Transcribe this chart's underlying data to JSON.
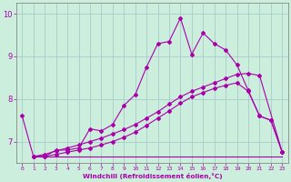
{
  "xlabel": "Windchill (Refroidissement éolien,°C)",
  "bg_color": "#cceedd",
  "grid_color": "#aacccc",
  "line_color": "#aa00aa",
  "xlim": [
    -0.5,
    23.5
  ],
  "ylim": [
    6.5,
    10.25
  ],
  "yticks": [
    7,
    8,
    9,
    10
  ],
  "xticks": [
    0,
    1,
    2,
    3,
    4,
    5,
    6,
    7,
    8,
    9,
    10,
    11,
    12,
    13,
    14,
    15,
    16,
    17,
    18,
    19,
    20,
    21,
    22,
    23
  ],
  "line1_x": [
    0,
    1,
    2,
    3,
    4,
    5,
    6,
    7,
    8,
    9,
    10,
    11,
    12,
    13,
    14,
    15,
    16,
    17,
    18,
    19,
    20,
    21,
    22,
    23
  ],
  "line1_y": [
    7.6,
    6.65,
    6.65,
    6.8,
    6.8,
    6.85,
    7.3,
    7.25,
    7.4,
    7.85,
    8.1,
    8.75,
    9.3,
    9.35,
    9.9,
    9.05,
    9.55,
    9.3,
    9.15,
    8.8,
    8.2,
    7.6,
    7.5,
    6.75
  ],
  "line2_x": [
    1,
    2,
    3,
    4,
    5,
    6,
    7,
    8,
    9,
    10,
    11,
    12,
    13,
    14,
    15,
    16,
    17,
    18,
    19,
    20,
    21,
    23
  ],
  "line2_y": [
    6.65,
    6.7,
    6.78,
    6.85,
    6.92,
    7.0,
    7.08,
    7.18,
    7.28,
    7.4,
    7.55,
    7.7,
    7.88,
    8.05,
    8.18,
    8.28,
    8.38,
    8.48,
    8.58,
    8.6,
    8.55,
    6.75
  ],
  "line3_x": [
    1,
    2,
    3,
    4,
    5,
    6,
    7,
    8,
    9,
    10,
    11,
    12,
    13,
    14,
    15,
    16,
    17,
    18,
    19,
    20,
    21,
    22,
    23
  ],
  "line3_y": [
    6.65,
    6.65,
    6.7,
    6.75,
    6.8,
    6.85,
    6.92,
    7.0,
    7.1,
    7.22,
    7.38,
    7.55,
    7.72,
    7.9,
    8.05,
    8.15,
    8.25,
    8.32,
    8.38,
    8.18,
    7.6,
    7.5,
    6.75
  ],
  "hline_y": 6.65,
  "hline_xstart": 1,
  "hline_xend": 23
}
